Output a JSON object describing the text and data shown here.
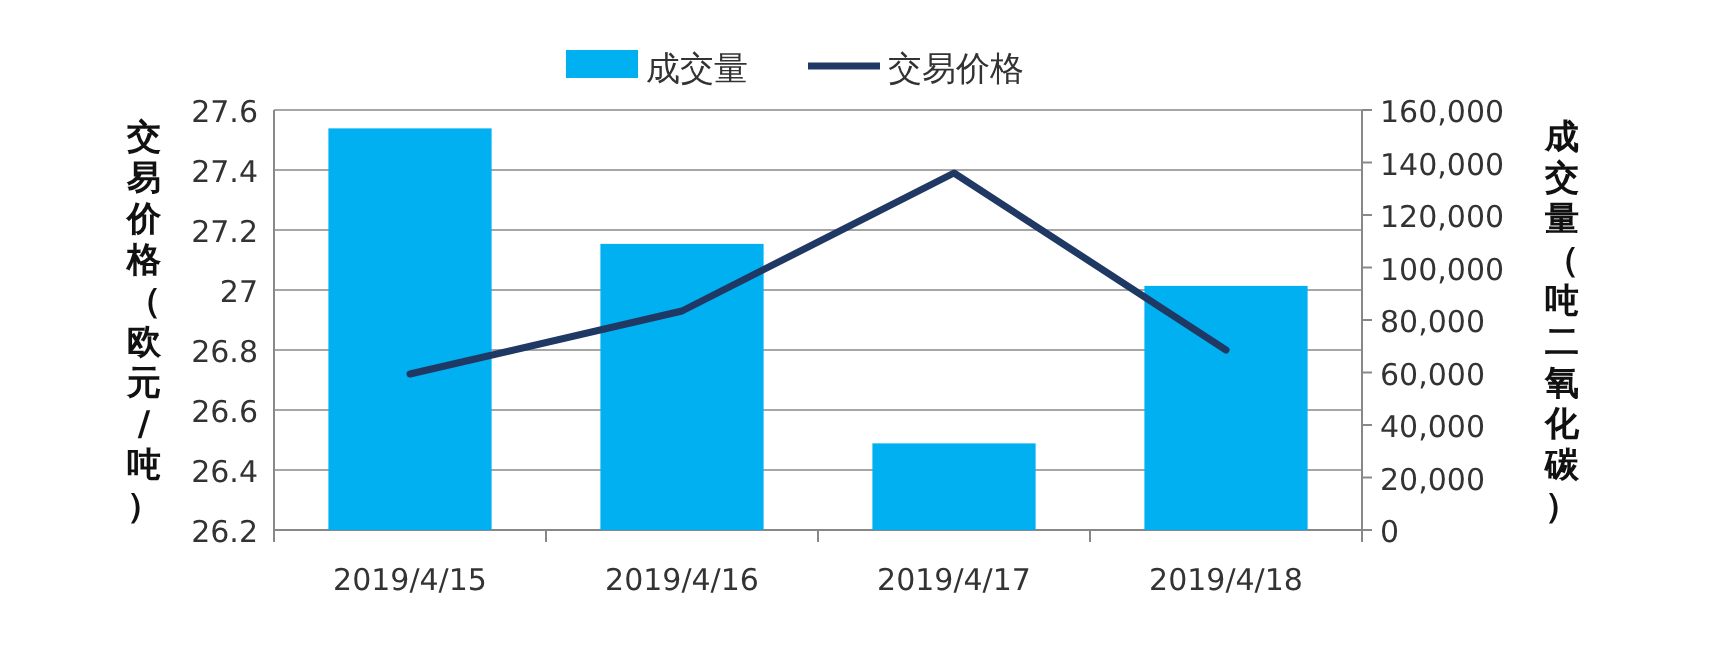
{
  "chart_data": {
    "type": "bar",
    "categories": [
      "2019/4/15",
      "2019/4/16",
      "2019/4/17",
      "2019/4/18"
    ],
    "series": [
      {
        "name": "成交量",
        "axis": "y2",
        "color": "#00b0f0",
        "values": [
          153000,
          109000,
          33000,
          93000
        ]
      },
      {
        "name": "交易价格",
        "type": "line",
        "color": "#1f3864",
        "values": [
          26.72,
          26.93,
          27.39,
          26.8
        ]
      }
    ],
    "ylabel": "交易价格（欧元/吨）",
    "y2label": "成交量（吨二氧化碳）",
    "ylim": [
      26.2,
      27.6
    ],
    "yticks": [
      26.2,
      26.4,
      26.6,
      26.8,
      27,
      27.2,
      27.4,
      27.6
    ],
    "y2lim": [
      0,
      160000
    ],
    "y2ticks": [
      0,
      {
        "value": 20000,
        "label": "20,000"
      },
      {
        "value": 40000,
        "label": "40,000"
      },
      {
        "value": 60000,
        "label": "60,000"
      },
      {
        "value": 80000,
        "label": "80,000"
      },
      {
        "value": 100000,
        "label": "100,000"
      },
      {
        "value": 120000,
        "label": "120,000"
      },
      {
        "value": 140000,
        "label": "140,000"
      },
      {
        "value": 160000,
        "label": "160,000"
      }
    ],
    "grid": "y",
    "legend": "top"
  }
}
